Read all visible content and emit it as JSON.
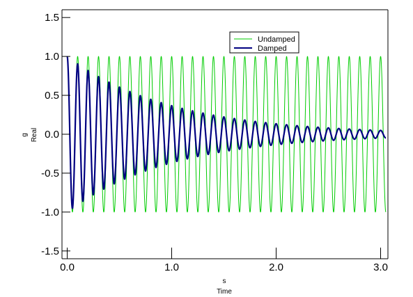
{
  "chart_data": {
    "type": "line",
    "xlabel": "Time",
    "xunit": "s",
    "ylabel": "Real",
    "yunit": "g",
    "xlim": [
      -0.05,
      3.07
    ],
    "ylim": [
      -1.6,
      1.6
    ],
    "x_ticks": [
      0.0,
      1.0,
      2.0,
      3.0
    ],
    "x_tick_labels": [
      "0.0",
      "1.0",
      "2.0",
      "3.0"
    ],
    "y_ticks": [
      1.5,
      1.0,
      0.5,
      0.0,
      -0.5,
      -1.0,
      -1.5
    ],
    "y_tick_labels": [
      "1.5",
      "1.0",
      "0.5",
      "0.0",
      "-0.5",
      "-1.0",
      "-1.5"
    ],
    "grid": false,
    "legend_position": "top-right",
    "series": [
      {
        "name": "Undamped",
        "color": "#00cc00",
        "model": "cosine",
        "amplitude": 1.0,
        "frequency_hz": 10.0,
        "decay_rate": 0.0,
        "x_range": [
          0.0,
          3.05
        ]
      },
      {
        "name": "Damped",
        "color": "#000080",
        "model": "damped-cosine",
        "amplitude": 1.0,
        "frequency_hz": 10.0,
        "decay_rate": 1.0,
        "x_range": [
          0.0,
          3.05
        ]
      }
    ]
  }
}
